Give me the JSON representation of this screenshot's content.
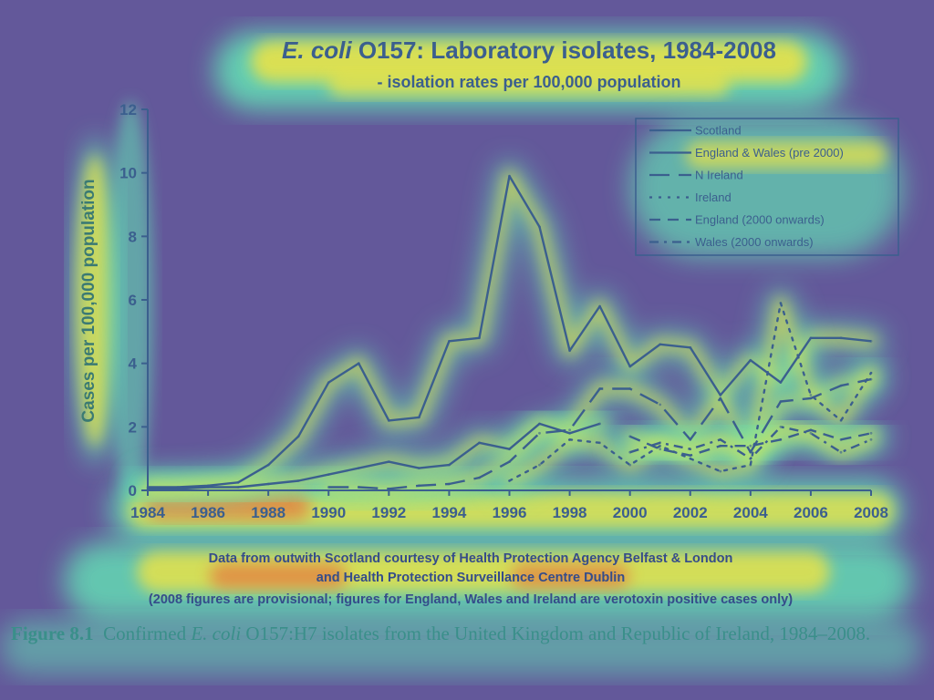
{
  "chart_data": {
    "type": "line",
    "title_italic": "E. coli",
    "title_rest": " O157: Laboratory isolates, 1984-2008",
    "subtitle": "- isolation rates per 100,000 population",
    "xlabel": "",
    "ylabel": "Cases per 100,000 population",
    "xlim": [
      1984,
      2008
    ],
    "ylim": [
      0,
      12
    ],
    "x_ticks": [
      "1984",
      "1986",
      "1988",
      "1990",
      "1992",
      "1994",
      "1996",
      "1998",
      "2000",
      "2002",
      "2004",
      "2006",
      "2008"
    ],
    "y_ticks": [
      "0",
      "2",
      "4",
      "6",
      "8",
      "10",
      "12"
    ],
    "grid": false,
    "legend_position": "top-right",
    "series": [
      {
        "name": "Scotland",
        "style": "solid",
        "x": [
          1984,
          1985,
          1986,
          1987,
          1988,
          1989,
          1990,
          1991,
          1992,
          1993,
          1994,
          1995,
          1996,
          1997,
          1998,
          1999,
          2000,
          2001,
          2002,
          2003,
          2004,
          2005,
          2006,
          2007,
          2008
        ],
        "y": [
          0.1,
          0.1,
          0.15,
          0.25,
          0.8,
          1.7,
          3.4,
          4.0,
          2.2,
          2.3,
          4.7,
          4.8,
          9.9,
          8.3,
          4.4,
          5.8,
          3.9,
          4.6,
          4.5,
          3.0,
          4.1,
          3.4,
          4.8,
          4.8,
          4.7
        ]
      },
      {
        "name": "England & Wales (pre 2000)",
        "style": "solid",
        "x": [
          1984,
          1985,
          1986,
          1987,
          1988,
          1989,
          1990,
          1991,
          1992,
          1993,
          1994,
          1995,
          1996,
          1997,
          1998,
          1999
        ],
        "y": [
          0.05,
          0.05,
          0.1,
          0.1,
          0.2,
          0.3,
          0.5,
          0.7,
          0.9,
          0.7,
          0.8,
          1.5,
          1.3,
          2.1,
          1.8,
          2.1
        ]
      },
      {
        "name": "N Ireland",
        "style": "longdash",
        "x": [
          1990,
          1991,
          1992,
          1993,
          1994,
          1995,
          1996,
          1997,
          1998,
          1999,
          2000,
          2001,
          2002,
          2003,
          2004,
          2005,
          2006,
          2007,
          2008
        ],
        "y": [
          0.1,
          0.1,
          0.05,
          0.15,
          0.2,
          0.4,
          0.9,
          1.8,
          1.9,
          3.2,
          3.2,
          2.7,
          1.6,
          2.9,
          1.2,
          2.8,
          2.9,
          3.3,
          3.5
        ]
      },
      {
        "name": "Ireland",
        "style": "dotted",
        "x": [
          1996,
          1997,
          1998,
          1999,
          2000,
          2001,
          2002,
          2003,
          2004,
          2005,
          2006,
          2007,
          2008
        ],
        "y": [
          0.3,
          0.8,
          1.6,
          1.5,
          0.8,
          1.4,
          1.0,
          0.6,
          0.8,
          5.9,
          3.0,
          2.2,
          3.7
        ]
      },
      {
        "name": "England (2000 onwards)",
        "style": "dash",
        "x": [
          2000,
          2001,
          2002,
          2003,
          2004,
          2005,
          2006,
          2007,
          2008
        ],
        "y": [
          1.7,
          1.3,
          1.1,
          1.4,
          1.4,
          1.6,
          1.9,
          1.6,
          1.8
        ]
      },
      {
        "name": "Wales (2000 onwards)",
        "style": "dashdot",
        "x": [
          2000,
          2001,
          2002,
          2003,
          2004,
          2005,
          2006,
          2007,
          2008
        ],
        "y": [
          1.2,
          1.5,
          1.3,
          1.6,
          1.0,
          2.0,
          1.8,
          1.2,
          1.6
        ]
      }
    ],
    "notes": [
      "Data from outwith Scotland courtesy of Health Protection Agency Belfast & London",
      "and Health Protection Surveillance Centre Dublin",
      "(2008 figures are provisional; figures for England, Wales and Ireland are verotoxin positive cases only)"
    ]
  },
  "caption": {
    "label": "Figure 8.1",
    "text_before": "Confirmed ",
    "italic": "E. coli",
    "text_after": " O157:H7 isolates from the United Kingdom and Republic of Ireland, 1984–2008."
  },
  "colors": {
    "background": "#63589a",
    "line": "#3b5f8e",
    "axis_label": "#3b7a73",
    "caption": "#3a8f8a",
    "glow_strong": "#e8633a",
    "glow_mid": "#e7e24a",
    "glow_soft": "#63e2b5"
  }
}
